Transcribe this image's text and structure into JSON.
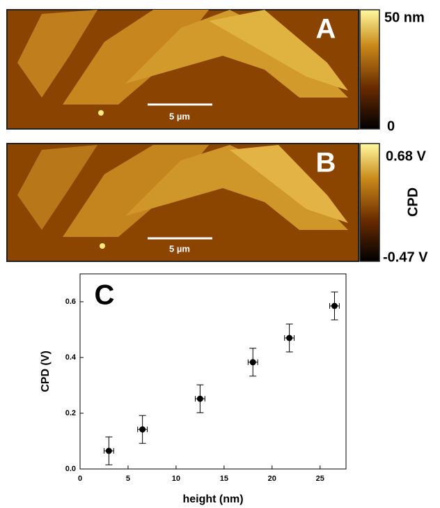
{
  "panels": [
    {
      "label": "A",
      "scale_bar": "5 µm",
      "colorbar_max": "50 nm",
      "colorbar_min": "0"
    },
    {
      "label": "B",
      "scale_bar": "5 µm",
      "colorbar_max": "0.68 V",
      "colorbar_min": "-0.47 V",
      "colorbar_title": "CPD"
    }
  ],
  "chart_data": {
    "type": "scatter",
    "panel_label": "C",
    "x_label": "height (nm)",
    "y_label": "CPD (V)",
    "series": [
      {
        "color": "#000000",
        "x": [
          3,
          6.5,
          12.5,
          18,
          21.8,
          26.5
        ],
        "xerr": [
          0.5,
          0.5,
          0.5,
          0.5,
          0.5,
          0.5
        ],
        "values": [
          0.065,
          0.142,
          0.252,
          0.383,
          0.47,
          0.585
        ],
        "yerr": [
          0.05,
          0.05,
          0.05,
          0.05,
          0.05,
          0.05
        ]
      }
    ],
    "xlim": [
      0,
      27.7
    ],
    "ylim": [
      0,
      0.7
    ],
    "xticks": [
      0,
      5,
      10,
      15,
      20,
      25
    ],
    "yticks": [
      {
        "value": 0,
        "label": "0.0"
      },
      0.2,
      0.4,
      0.6
    ]
  }
}
